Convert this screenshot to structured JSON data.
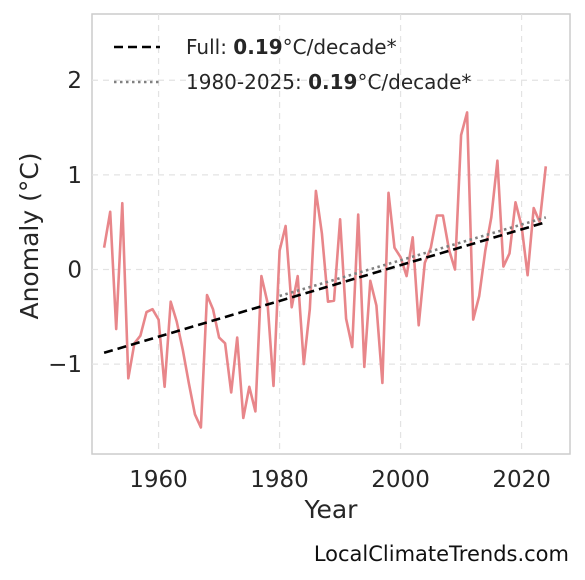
{
  "chart_data": {
    "type": "line",
    "xlabel": "Year",
    "ylabel": "Anomaly (°C)",
    "xlim": [
      1949,
      2028
    ],
    "ylim": [
      -1.95,
      2.7
    ],
    "xticks": [
      1960,
      1980,
      2000,
      2020
    ],
    "yticks": [
      -1,
      0,
      1,
      2
    ],
    "xtick_labels": [
      "1960",
      "1980",
      "2000",
      "2020"
    ],
    "ytick_labels": [
      "−1",
      "0",
      "1",
      "2"
    ],
    "grid": true,
    "legend_position": "top-left",
    "series": [
      {
        "style": "solid",
        "color": "#e8868a",
        "x": [
          1951,
          1952,
          1953,
          1954,
          1955,
          1956,
          1957,
          1958,
          1959,
          1960,
          1961,
          1962,
          1963,
          1964,
          1965,
          1966,
          1967,
          1968,
          1969,
          1970,
          1971,
          1972,
          1973,
          1974,
          1975,
          1976,
          1977,
          1978,
          1979,
          1980,
          1981,
          1982,
          1983,
          1984,
          1985,
          1986,
          1987,
          1988,
          1989,
          1990,
          1991,
          1992,
          1993,
          1994,
          1995,
          1996,
          1997,
          1998,
          1999,
          2000,
          2001,
          2002,
          2003,
          2004,
          2005,
          2006,
          2007,
          2008,
          2009,
          2010,
          2011,
          2012,
          2013,
          2014,
          2015,
          2016,
          2017,
          2018,
          2019,
          2020,
          2021,
          2022,
          2023,
          2024
        ],
        "y": [
          0.23,
          0.61,
          -0.63,
          0.7,
          -1.15,
          -0.78,
          -0.7,
          -0.45,
          -0.42,
          -0.53,
          -1.24,
          -0.34,
          -0.55,
          -0.85,
          -1.2,
          -1.53,
          -1.67,
          -0.27,
          -0.42,
          -0.72,
          -0.78,
          -1.3,
          -0.72,
          -1.57,
          -1.24,
          -1.5,
          -0.07,
          -0.35,
          -1.23,
          0.2,
          0.46,
          -0.4,
          -0.07,
          -1.0,
          -0.42,
          0.83,
          0.38,
          -0.34,
          -0.33,
          0.53,
          -0.52,
          -0.82,
          0.58,
          -1.03,
          -0.12,
          -0.38,
          -1.2,
          0.81,
          0.23,
          0.13,
          -0.07,
          0.34,
          -0.59,
          0.07,
          0.23,
          0.57,
          0.57,
          0.21,
          0.0,
          1.42,
          1.66,
          -0.53,
          -0.28,
          0.2,
          0.55,
          1.15,
          0.03,
          0.17,
          0.71,
          0.46,
          -0.06,
          0.65,
          0.5,
          1.09
        ]
      },
      {
        "name": "Full: 0.19°C/decade*",
        "style": "dashed",
        "color": "#000000",
        "x": [
          1951,
          2024
        ],
        "y": [
          -0.88,
          0.5
        ]
      },
      {
        "name": "1980-2025: 0.19°C/decade*",
        "style": "dotted",
        "color": "#808080",
        "x": [
          1980,
          2024
        ],
        "y": [
          -0.28,
          0.55
        ]
      }
    ]
  },
  "legend": {
    "items": [
      {
        "prefix": "Full: ",
        "bold": "0.19",
        "suffix": "°C/decade*"
      },
      {
        "prefix": "1980-2025: ",
        "bold": "0.19",
        "suffix": "°C/decade*"
      }
    ]
  },
  "source_label": "LocalClimateTrends.com"
}
